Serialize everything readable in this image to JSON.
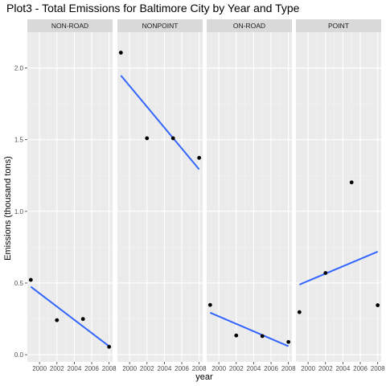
{
  "chart_data": {
    "type": "scatter",
    "title": "Plot3 - Total Emissions for Baltimore City by Year and Type",
    "xlabel": "year",
    "ylabel": "Emissions (thousand tons)",
    "xlim": [
      1998.6,
      2008.4
    ],
    "ylim": [
      -0.05,
      2.25
    ],
    "x_ticks": [
      2000,
      2002,
      2004,
      2006,
      2008
    ],
    "x_tick_labels": [
      "2000",
      "2002",
      "2004",
      "2006",
      "2008"
    ],
    "y_ticks": [
      0.0,
      0.5,
      1.0,
      1.5,
      2.0
    ],
    "y_tick_labels": [
      "0.0",
      "0.5",
      "1.0",
      "1.5",
      "2.0"
    ],
    "grid": true,
    "colors": {
      "panel_bg": "#ebebeb",
      "strip_bg": "#d9d9d9",
      "grid_major": "#ffffff",
      "grid_minor": "#f3f3f3",
      "point": "#000000",
      "fit_line": "#3366ff"
    },
    "panels": [
      {
        "name": "NON-ROAD",
        "points": [
          [
            1999,
            0.522
          ],
          [
            2002,
            0.241
          ],
          [
            2005,
            0.249
          ],
          [
            2008,
            0.055
          ]
        ],
        "fit": [
          [
            1999,
            0.474
          ],
          [
            2008,
            0.059
          ]
        ]
      },
      {
        "name": "NONPOINT",
        "points": [
          [
            1999,
            2.107
          ],
          [
            2002,
            1.51
          ],
          [
            2005,
            1.51
          ],
          [
            2008,
            1.373
          ]
        ],
        "fit": [
          [
            1999,
            1.948
          ],
          [
            2008,
            1.293
          ]
        ]
      },
      {
        "name": "ON-ROAD",
        "points": [
          [
            1999,
            0.347
          ],
          [
            2002,
            0.134
          ],
          [
            2005,
            0.13
          ],
          [
            2008,
            0.089
          ]
        ],
        "fit": [
          [
            1999,
            0.293
          ],
          [
            2008,
            0.059
          ]
        ]
      },
      {
        "name": "POINT",
        "points": [
          [
            1999,
            0.297
          ],
          [
            2002,
            0.57
          ],
          [
            2005,
            1.202
          ],
          [
            2008,
            0.345
          ]
        ],
        "fit": [
          [
            1999,
            0.489
          ],
          [
            2008,
            0.719
          ]
        ]
      }
    ]
  }
}
